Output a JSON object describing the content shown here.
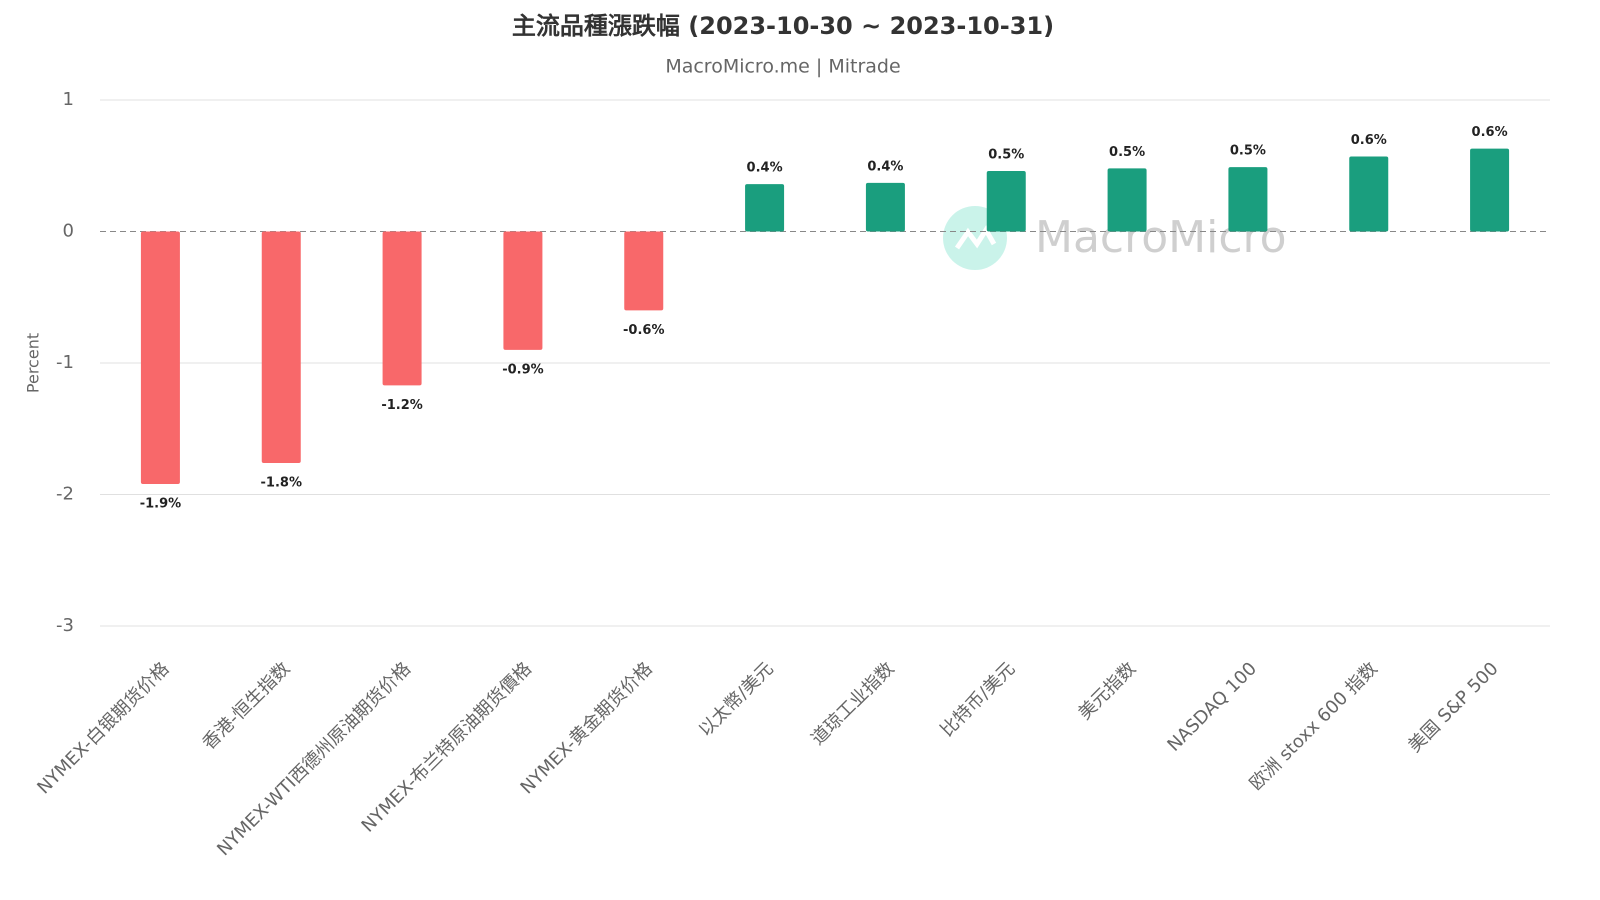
{
  "chart_data": {
    "type": "bar",
    "title": "主流品種漲跌幅 (2023-10-30 ~ 2023-10-31)",
    "subtitle": "MacroMicro.me | Mitrade",
    "watermark": "MacroMicro",
    "y_label": "Percent",
    "categories": [
      "NYMEX-白银期货价格",
      "香港-恒生指数",
      "NYMEX-WTI西德州原油期货价格",
      "NYMEX-布兰特原油期货價格",
      "NYMEX-黄金期货价格",
      "以太幣/美元",
      "道琼工业指数",
      "比特币/美元",
      "美元指数",
      "NASDAQ 100",
      "欧洲 stoxx 600 指数",
      "美国 S&P 500"
    ],
    "values": [
      -1.92,
      -1.76,
      -1.17,
      -0.9,
      -0.6,
      0.36,
      0.37,
      0.46,
      0.48,
      0.49,
      0.57,
      0.63
    ],
    "value_labels": [
      "-1.9%",
      "-1.8%",
      "-1.2%",
      "-0.9%",
      "-0.6%",
      "0.4%",
      "0.4%",
      "0.5%",
      "0.5%",
      "0.5%",
      "0.6%",
      "0.6%"
    ],
    "positive_color": "#1a9e7e",
    "negative_color": "#f8686a",
    "ylim": [
      -3,
      1
    ],
    "yticks": [
      -3,
      -2,
      -1,
      0,
      1
    ],
    "grid": true
  }
}
